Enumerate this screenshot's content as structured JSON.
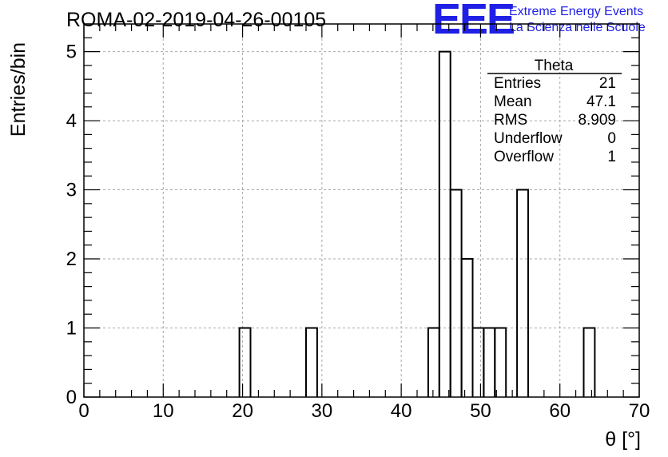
{
  "title": "ROMA-02-2019-04-26-00105",
  "logo": {
    "mark": "EEE",
    "line1": "Extreme Energy Events",
    "line2": "La Scienza nelle Scuole",
    "color": "#1f1fe6"
  },
  "stats": {
    "name": "Theta",
    "rows": [
      {
        "label": "Entries",
        "value": "21"
      },
      {
        "label": "Mean",
        "value": "47.1"
      },
      {
        "label": "RMS",
        "value": "8.909"
      },
      {
        "label": "Underflow",
        "value": "0"
      },
      {
        "label": "Overflow",
        "value": "1"
      }
    ]
  },
  "chart_data": {
    "type": "bar",
    "style": "step-histogram",
    "xlabel": "θ [°]",
    "ylabel": "Entries/bin",
    "xlim": [
      0,
      70
    ],
    "ylim": [
      0,
      5.4
    ],
    "xticks": [
      0,
      10,
      20,
      30,
      40,
      50,
      60,
      70
    ],
    "yticks": [
      0,
      1,
      2,
      3,
      4,
      5
    ],
    "grid": true,
    "bin_width": 1.4,
    "bins": [
      {
        "x0": 19.6,
        "value": 1
      },
      {
        "x0": 28.0,
        "value": 1
      },
      {
        "x0": 43.4,
        "value": 1
      },
      {
        "x0": 44.8,
        "value": 5
      },
      {
        "x0": 46.2,
        "value": 3
      },
      {
        "x0": 47.6,
        "value": 2
      },
      {
        "x0": 49.0,
        "value": 1
      },
      {
        "x0": 50.4,
        "value": 1
      },
      {
        "x0": 51.8,
        "value": 1
      },
      {
        "x0": 54.6,
        "value": 3
      },
      {
        "x0": 63.0,
        "value": 1
      }
    ]
  }
}
